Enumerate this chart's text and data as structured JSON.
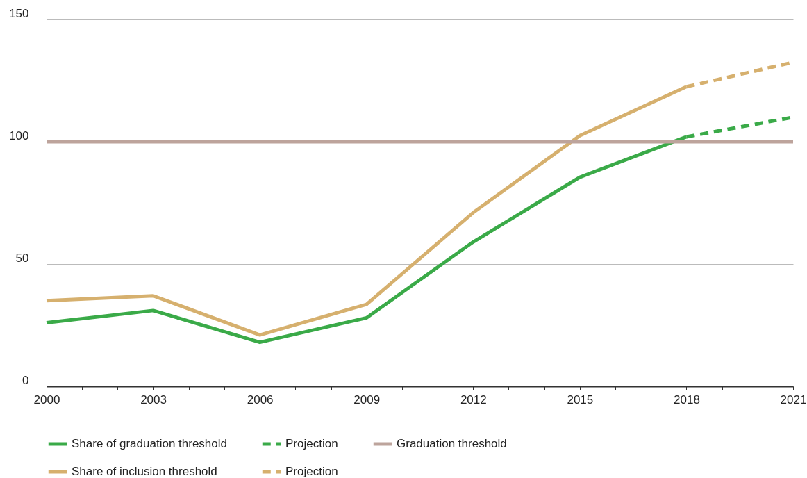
{
  "chart_data": {
    "type": "line",
    "xlim": [
      2000,
      2021
    ],
    "xticks": [
      2000,
      {
        "value": 2001,
        "label": null
      },
      {
        "value": 2002,
        "label": null
      },
      2003,
      {
        "value": 2004,
        "label": null
      },
      {
        "value": 2005,
        "label": null
      },
      2006,
      {
        "value": 2007,
        "label": null
      },
      {
        "value": 2008,
        "label": null
      },
      2009,
      {
        "value": 2010,
        "label": null
      },
      {
        "value": 2011,
        "label": null
      },
      2012,
      {
        "value": 2013,
        "label": null
      },
      {
        "value": 2014,
        "label": null
      },
      2015,
      {
        "value": 2016,
        "label": null
      },
      {
        "value": 2017,
        "label": null
      },
      2018,
      {
        "value": 2019,
        "label": null
      },
      {
        "value": 2020,
        "label": null
      },
      2021
    ],
    "ylim": [
      0,
      150
    ],
    "yticks": [
      0,
      50,
      100,
      150
    ],
    "grid": "y",
    "legend": "bottom",
    "marker": "none",
    "series": [
      {
        "name": "Share of graduation threshold",
        "color": "#3aaa48",
        "line_style": "solid",
        "x": [
          2000,
          2003,
          2006,
          2009,
          2012,
          2015,
          2018
        ],
        "values": [
          26,
          31,
          18,
          28,
          59,
          85.5,
          102
        ]
      },
      {
        "name": "Projection",
        "color": "#3aaa48",
        "line_style": "dashed",
        "x": [
          2018,
          2021
        ],
        "values": [
          102,
          110
        ]
      },
      {
        "name": "Share of inclusion threshold",
        "color": "#d6b06e",
        "line_style": "solid",
        "x": [
          2000,
          2003,
          2006,
          2009,
          2012,
          2015,
          2018
        ],
        "values": [
          35,
          37,
          21,
          33.5,
          71,
          102.5,
          122.5
        ]
      },
      {
        "name": "Projection",
        "color": "#d6b06e",
        "line_style": "dashed",
        "x": [
          2018,
          2021
        ],
        "values": [
          122.5,
          132.5
        ]
      }
    ],
    "ref_lines": [
      {
        "axis": "y",
        "value": 100,
        "label": "Graduation threshold",
        "color": "#bda49c",
        "line_style": "solid"
      }
    ]
  }
}
